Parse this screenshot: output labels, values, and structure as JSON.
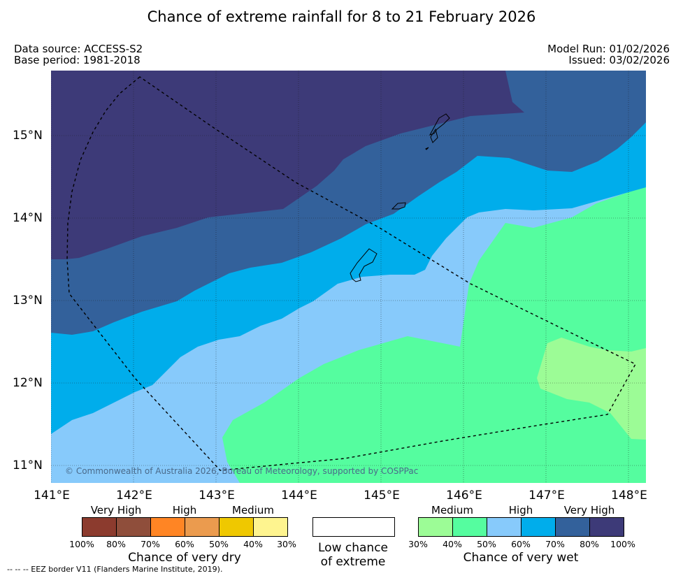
{
  "header": {
    "title": "Chance of extreme rainfall for 8 to 21 February 2026",
    "data_source": "Data source: ACCESS-S2",
    "base_period": "Base period: 1981-2018",
    "model_run": "Model Run: 01/02/2026",
    "issued": "Issued: 03/02/2026"
  },
  "map": {
    "lat_ticks": [
      "15°N",
      "14°N",
      "13°N",
      "12°N",
      "11°N"
    ],
    "lon_ticks": [
      "141°E",
      "142°E",
      "143°E",
      "144°E",
      "145°E",
      "146°E",
      "147°E",
      "148°E"
    ],
    "lat_range": [
      10.8,
      15.8
    ],
    "lon_range": [
      141.0,
      148.2
    ],
    "copyright": "© Commonwealth of Australia 2026, Bureau of Meteorology, supported by COSPPac",
    "zone_colors": {
      "very_high_wet": "#3d3a78",
      "high_wet_upper": "#33619b",
      "high_wet_lower": "#00adeb",
      "medium_wet_upper": "#87cafb",
      "medium_wet_lower": "#55fd9f",
      "low_wet": "#9cfc96"
    }
  },
  "legend": {
    "dry": {
      "levels": [
        "Very High",
        "High",
        "Medium"
      ],
      "percents": [
        "100%",
        "80%",
        "70%",
        "60%",
        "50%",
        "40%",
        "30%"
      ],
      "colors": [
        "#8c3b2e",
        "#8f4e3b",
        "#ff8524",
        "#eb9b4e",
        "#efc800",
        "#fef48f"
      ],
      "caption": "Chance of very dry"
    },
    "neutral": {
      "caption_line1": "Low chance",
      "caption_line2": "of extreme"
    },
    "wet": {
      "levels": [
        "Medium",
        "High",
        "Very High"
      ],
      "percents": [
        "30%",
        "40%",
        "50%",
        "60%",
        "70%",
        "80%",
        "100%"
      ],
      "colors": [
        "#9cfc96",
        "#55fd9f",
        "#87cafb",
        "#00adeb",
        "#33619b",
        "#3d3a78"
      ],
      "caption": "Chance of very wet"
    }
  },
  "footnote": "--  --  -- EEZ border V11 (Flanders Marine Institute, 2019)."
}
